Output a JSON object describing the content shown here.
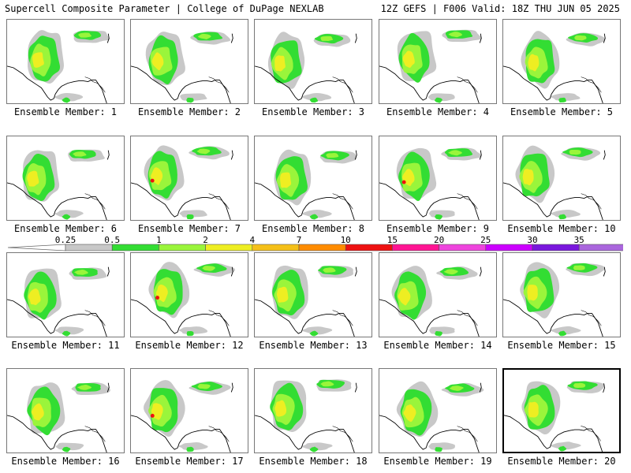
{
  "header": {
    "left": "Supercell Composite Parameter | College of DuPage NEXLAB",
    "right": "12Z GEFS | F006 Valid: 18Z THU JUN 05 2025"
  },
  "colorbar": {
    "labels": [
      "0.25",
      "0.5",
      "1",
      "2",
      "4",
      "7",
      "10",
      "15",
      "20",
      "25",
      "30",
      "35"
    ],
    "colors": [
      "#c8c8c8",
      "#33dd33",
      "#9af53b",
      "#eeee22",
      "#f5c018",
      "#ff8c00",
      "#ee1111",
      "#ff1493",
      "#ee44dd",
      "#cc00ff",
      "#7a17dd",
      "#aa66dd",
      "#22e5ee"
    ]
  },
  "panels": [
    {
      "label": "Ensemble Member: 1",
      "selected": false
    },
    {
      "label": "Ensemble Member: 2",
      "selected": false
    },
    {
      "label": "Ensemble Member: 3",
      "selected": false
    },
    {
      "label": "Ensemble Member: 4",
      "selected": false
    },
    {
      "label": "Ensemble Member: 5",
      "selected": false
    },
    {
      "label": "Ensemble Member: 6",
      "selected": false
    },
    {
      "label": "Ensemble Member: 7",
      "selected": false
    },
    {
      "label": "Ensemble Member: 8",
      "selected": false
    },
    {
      "label": "Ensemble Member: 9",
      "selected": false
    },
    {
      "label": "Ensemble Member: 10",
      "selected": false
    },
    {
      "label": "Ensemble Member: 11",
      "selected": false
    },
    {
      "label": "Ensemble Member: 12",
      "selected": false
    },
    {
      "label": "Ensemble Member: 13",
      "selected": false
    },
    {
      "label": "Ensemble Member: 14",
      "selected": false
    },
    {
      "label": "Ensemble Member: 15",
      "selected": false
    },
    {
      "label": "Ensemble Member: 16",
      "selected": false
    },
    {
      "label": "Ensemble Member: 17",
      "selected": false
    },
    {
      "label": "Ensemble Member: 18",
      "selected": false
    },
    {
      "label": "Ensemble Member: 19",
      "selected": false
    },
    {
      "label": "Ensemble Member: 20",
      "selected": true
    }
  ]
}
